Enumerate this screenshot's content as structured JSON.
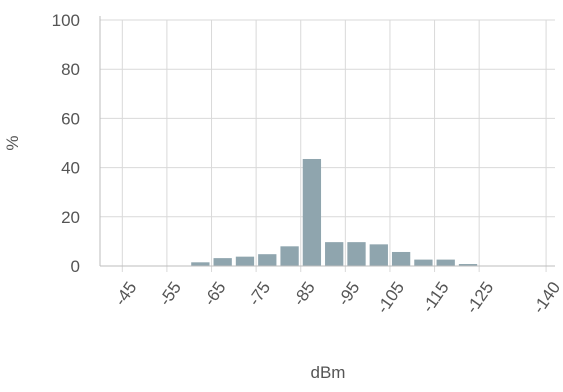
{
  "chart_data": {
    "type": "bar",
    "title": "",
    "xlabel": "dBm",
    "ylabel": "%",
    "ylim": [
      0,
      100
    ],
    "yticks": [
      "0",
      "20",
      "40",
      "60",
      "80",
      "100"
    ],
    "xticks": [
      "-45",
      "-55",
      "-65",
      "-75",
      "-85",
      "-95",
      "-105",
      "-115",
      "-125",
      "-140"
    ],
    "grid": true,
    "bar_color": "#8fa5ae",
    "grid_color": "#d9d9d9",
    "axis_color": "#bdbdbd",
    "bars": [
      {
        "x": -62.5,
        "value": 1.5
      },
      {
        "x": -67.5,
        "value": 3.2
      },
      {
        "x": -72.5,
        "value": 3.8
      },
      {
        "x": -77.5,
        "value": 4.8
      },
      {
        "x": -82.5,
        "value": 8.0
      },
      {
        "x": -87.5,
        "value": 43.5
      },
      {
        "x": -92.5,
        "value": 9.7
      },
      {
        "x": -97.5,
        "value": 9.7
      },
      {
        "x": -102.5,
        "value": 8.8
      },
      {
        "x": -107.5,
        "value": 5.7
      },
      {
        "x": -112.5,
        "value": 2.6
      },
      {
        "x": -117.5,
        "value": 2.6
      },
      {
        "x": -122.5,
        "value": 0.8
      }
    ]
  }
}
